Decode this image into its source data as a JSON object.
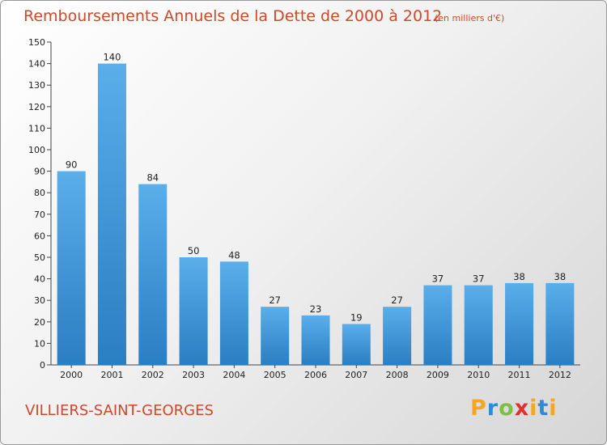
{
  "title": "Remboursements Annuels de la Dette de 2000 à 2012",
  "unit_note": "(en milliers d'€)",
  "commune": "VILLIERS-SAINT-GEORGES",
  "logo_text": "Proxiti",
  "colors": {
    "bar_light": "#5aaeea",
    "bar_dark": "#2a7ec2",
    "title": "#d0482a"
  },
  "chart_data": {
    "type": "bar",
    "categories": [
      "2000",
      "2001",
      "2002",
      "2003",
      "2004",
      "2005",
      "2006",
      "2007",
      "2008",
      "2009",
      "2010",
      "2011",
      "2012"
    ],
    "values": [
      90,
      140,
      84,
      50,
      48,
      27,
      23,
      19,
      27,
      37,
      37,
      38,
      38
    ],
    "title": "Remboursements Annuels de la Dette de 2000 à 2012",
    "xlabel": "",
    "ylabel": "",
    "ylim": [
      0,
      150
    ],
    "yticks": [
      0,
      10,
      20,
      30,
      40,
      50,
      60,
      70,
      80,
      90,
      100,
      110,
      120,
      130,
      140,
      150
    ],
    "grid": false,
    "legend": "none"
  }
}
